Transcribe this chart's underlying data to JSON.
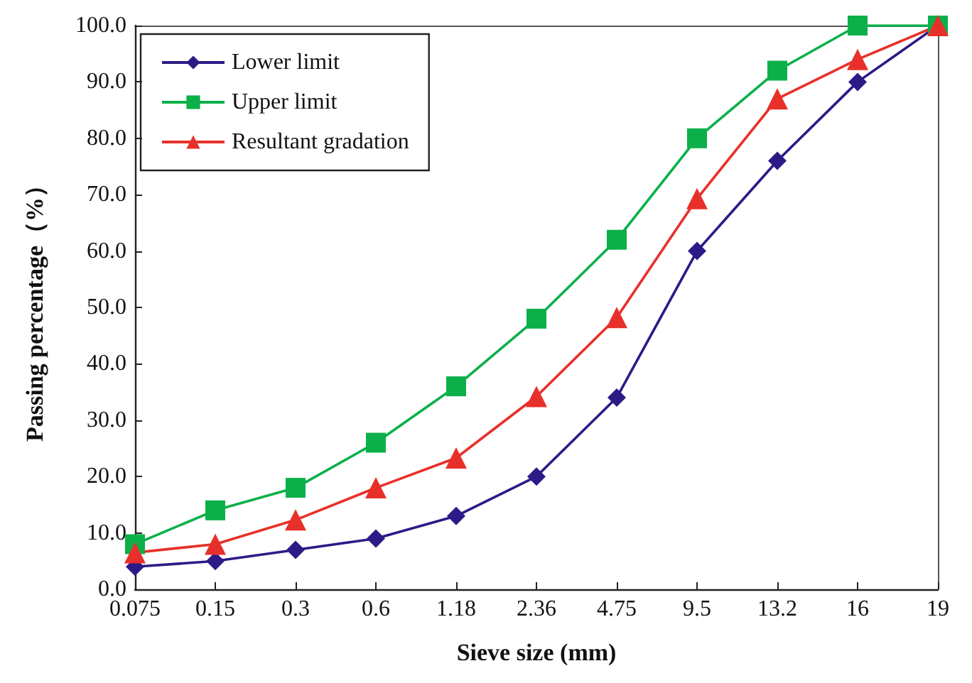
{
  "chart_data": {
    "type": "line",
    "xlabel": "Sieve size (mm)",
    "ylabel": "Passing percentage（%）",
    "categories": [
      "0.075",
      "0.15",
      "0.3",
      "0.6",
      "1.18",
      "2.36",
      "4.75",
      "9.5",
      "13.2",
      "16",
      "19"
    ],
    "series": [
      {
        "name": "Lower limit",
        "color": "#2e1a87",
        "marker": "diamond",
        "values": [
          4,
          5,
          7,
          9,
          13,
          20,
          34,
          60,
          76,
          90,
          100
        ]
      },
      {
        "name": "Upper limit",
        "color": "#0cb04a",
        "marker": "square",
        "values": [
          8,
          14,
          18,
          26,
          36,
          48,
          62,
          80,
          92,
          100,
          100
        ]
      },
      {
        "name": "Resultant gradation",
        "color": "#e8302a",
        "marker": "triangle",
        "values": [
          6.5,
          8,
          12.3,
          18,
          23.3,
          34.2,
          48.2,
          69.3,
          87,
          94,
          100
        ]
      }
    ],
    "ylim": [
      0,
      100
    ],
    "yticks": [
      {
        "value": 0,
        "label": "0.0"
      },
      {
        "value": 10,
        "label": "10.0"
      },
      {
        "value": 20,
        "label": "20.0"
      },
      {
        "value": 30,
        "label": "30.0"
      },
      {
        "value": 40,
        "label": "40.0"
      },
      {
        "value": 50,
        "label": "50.0"
      },
      {
        "value": 60,
        "label": "60.0"
      },
      {
        "value": 70,
        "label": "70.0"
      },
      {
        "value": 80,
        "label": "80.0"
      },
      {
        "value": 90,
        "label": "90.0"
      },
      {
        "value": 100,
        "label": "100.0"
      }
    ],
    "grid": false,
    "legend": "top left",
    "line_style": "solid"
  }
}
